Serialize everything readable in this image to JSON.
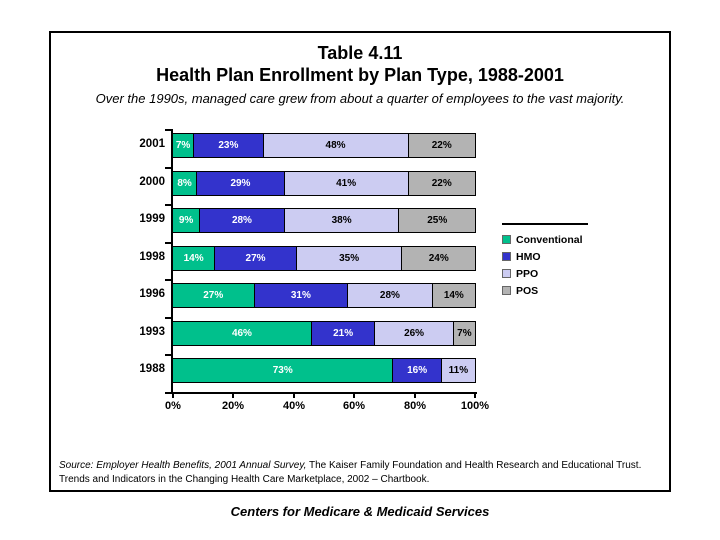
{
  "page": {
    "footer": "Centers for Medicare & Medicaid Services"
  },
  "slide": {
    "title_line1": "Table 4.11",
    "title_line2": "Health Plan Enrollment by Plan Type, 1988-2001",
    "subtitle": "Over the 1990s, managed care grew from about a quarter of employees to the vast majority.",
    "source_line1_italic": "Source: Employer Health Benefits, 2001 Annual Survey,",
    "source_line1_rest": " The Kaiser Family Foundation and Health Research and Educational Trust.",
    "source_line2": "Trends and Indicators in the Changing Health Care Marketplace, 2002 – Chartbook."
  },
  "chart_data": {
    "type": "bar",
    "orientation": "horizontal",
    "stacked": true,
    "title": "Health Plan Enrollment by Plan Type, 1988-2001",
    "xlabel": "",
    "ylabel": "",
    "xlim": [
      0,
      100
    ],
    "grid": false,
    "legend_position": "right",
    "value_suffix": "%",
    "categories": [
      "2001",
      "2000",
      "1999",
      "1998",
      "1996",
      "1993",
      "1988"
    ],
    "series": [
      {
        "name": "Conventional",
        "color": "#00C08C",
        "label_color": "#FFFFFF",
        "values": [
          7,
          8,
          9,
          14,
          27,
          46,
          73
        ]
      },
      {
        "name": "HMO",
        "color": "#3333CC",
        "label_color": "#FFFFFF",
        "values": [
          23,
          29,
          28,
          27,
          31,
          21,
          16
        ]
      },
      {
        "name": "PPO",
        "color": "#CCCCF2",
        "label_color": "#000000",
        "values": [
          48,
          41,
          38,
          35,
          28,
          26,
          11
        ]
      },
      {
        "name": "POS",
        "color": "#B3B3B3",
        "label_color": "#000000",
        "values": [
          22,
          22,
          25,
          24,
          14,
          7,
          0
        ]
      }
    ],
    "x_ticks": [
      "0%",
      "20%",
      "40%",
      "60%",
      "80%",
      "100%"
    ]
  }
}
